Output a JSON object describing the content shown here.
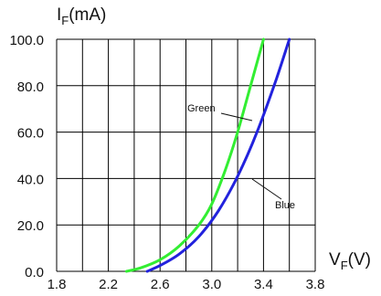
{
  "chart_data": {
    "type": "line",
    "y_label_main": "I",
    "y_label_sub": "F",
    "y_label_unit": "(mA)",
    "x_label_main": "V",
    "x_label_sub": "F",
    "x_label_unit": "(V)",
    "xlim": [
      1.8,
      3.8
    ],
    "ylim": [
      0,
      100
    ],
    "x_ticks": [
      "1.8",
      "2.2",
      "2.6",
      "3.0",
      "3.4",
      "3.8"
    ],
    "y_ticks": [
      "0.0",
      "20.0",
      "40.0",
      "60.0",
      "80.0",
      "100.0"
    ],
    "grid": true,
    "series": [
      {
        "name": "Green",
        "color": "#33ee33",
        "x": [
          2.34,
          2.45,
          2.6,
          2.75,
          2.9,
          3.0,
          3.1,
          3.2,
          3.3,
          3.4
        ],
        "y": [
          0,
          1.5,
          5,
          11,
          20,
          29,
          43,
          60,
          80,
          100
        ]
      },
      {
        "name": "Blue",
        "color": "#2222dd",
        "x": [
          2.5,
          2.6,
          2.75,
          2.9,
          3.05,
          3.2,
          3.35,
          3.5,
          3.6
        ],
        "y": [
          0,
          2.5,
          7.5,
          15,
          26,
          41,
          60,
          83,
          100
        ]
      }
    ]
  }
}
